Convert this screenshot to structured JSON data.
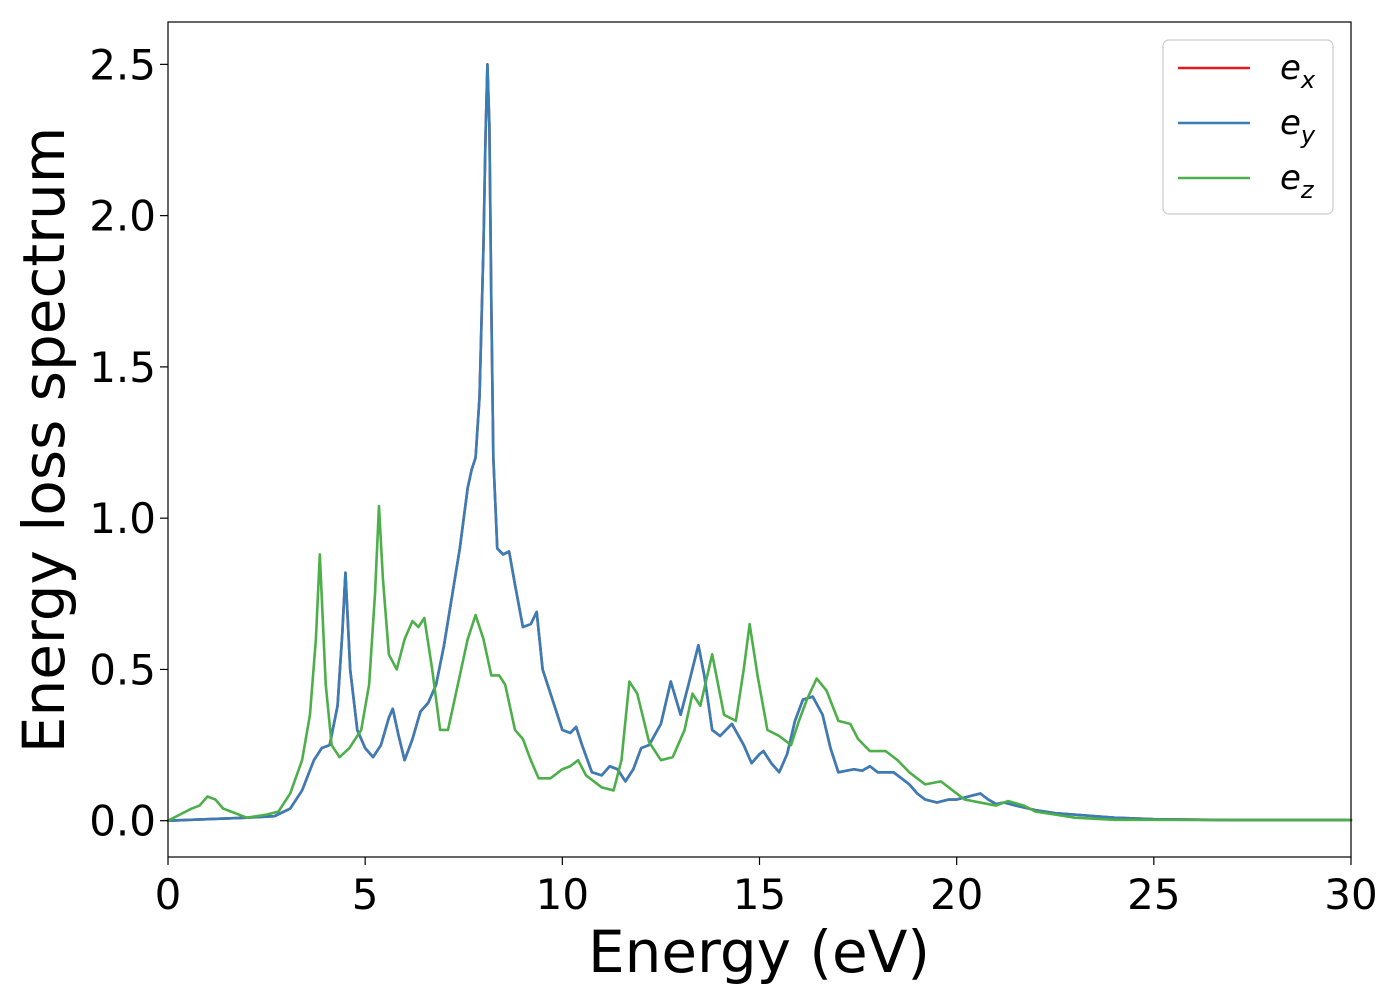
{
  "chart_data": {
    "type": "line",
    "title": "",
    "xlabel": "Energy (eV)",
    "ylabel": "Energy loss spectrum",
    "xlim": [
      0,
      30
    ],
    "ylim": [
      -0.12,
      2.64
    ],
    "x_ticks": [
      "0",
      "5",
      "10",
      "15",
      "20",
      "25",
      "30"
    ],
    "y_ticks": [
      "0.0",
      "0.5",
      "1.0",
      "1.5",
      "2.0",
      "2.5"
    ],
    "grid": false,
    "legend_position": "top-right",
    "colors": {
      "e_x": "#e41a1c",
      "e_y": "#377eb8",
      "e_z": "#4daf4a"
    },
    "series": [
      {
        "name": "e_x",
        "legend_base": "e",
        "legend_sub": "x",
        "x": [
          0,
          1,
          2,
          2.7,
          3.1,
          3.4,
          3.7,
          3.9,
          4.1,
          4.3,
          4.42,
          4.5,
          4.62,
          4.8,
          5.0,
          5.2,
          5.4,
          5.6,
          5.7,
          5.85,
          6.0,
          6.2,
          6.4,
          6.6,
          6.8,
          7.0,
          7.2,
          7.4,
          7.6,
          7.7,
          7.8,
          7.9,
          8.0,
          8.05,
          8.1,
          8.15,
          8.2,
          8.25,
          8.35,
          8.5,
          8.65,
          8.8,
          9.0,
          9.2,
          9.35,
          9.5,
          9.8,
          10.0,
          10.2,
          10.35,
          10.5,
          10.75,
          11.0,
          11.2,
          11.4,
          11.6,
          11.8,
          12.0,
          12.2,
          12.5,
          12.75,
          13.0,
          13.2,
          13.45,
          13.6,
          13.8,
          14.0,
          14.3,
          14.6,
          14.8,
          15.0,
          15.1,
          15.3,
          15.5,
          15.7,
          15.9,
          16.1,
          16.35,
          16.6,
          16.8,
          17.0,
          17.2,
          17.4,
          17.6,
          17.8,
          18.0,
          18.2,
          18.4,
          18.6,
          18.8,
          19.0,
          19.2,
          19.5,
          19.8,
          20.0,
          20.3,
          20.6,
          20.8,
          21.0,
          21.2,
          21.5,
          22.0,
          22.5,
          23,
          24,
          25,
          27,
          30
        ],
        "y": [
          0.0,
          0.005,
          0.01,
          0.015,
          0.04,
          0.1,
          0.2,
          0.24,
          0.25,
          0.38,
          0.62,
          0.82,
          0.5,
          0.3,
          0.24,
          0.21,
          0.25,
          0.34,
          0.37,
          0.28,
          0.2,
          0.27,
          0.36,
          0.39,
          0.45,
          0.58,
          0.74,
          0.9,
          1.1,
          1.16,
          1.2,
          1.4,
          1.9,
          2.25,
          2.5,
          2.3,
          1.7,
          1.2,
          0.9,
          0.88,
          0.89,
          0.78,
          0.64,
          0.65,
          0.69,
          0.5,
          0.38,
          0.3,
          0.29,
          0.31,
          0.25,
          0.16,
          0.15,
          0.18,
          0.17,
          0.13,
          0.17,
          0.24,
          0.25,
          0.32,
          0.46,
          0.35,
          0.45,
          0.58,
          0.48,
          0.3,
          0.28,
          0.32,
          0.25,
          0.19,
          0.22,
          0.23,
          0.19,
          0.16,
          0.22,
          0.33,
          0.4,
          0.41,
          0.35,
          0.24,
          0.16,
          0.165,
          0.17,
          0.165,
          0.18,
          0.16,
          0.16,
          0.16,
          0.14,
          0.12,
          0.09,
          0.07,
          0.06,
          0.07,
          0.07,
          0.08,
          0.09,
          0.07,
          0.055,
          0.06,
          0.05,
          0.035,
          0.025,
          0.02,
          0.01,
          0.005,
          0.002,
          0.002
        ]
      },
      {
        "name": "e_y",
        "legend_base": "e",
        "legend_sub": "y",
        "x": [
          0,
          1,
          2,
          2.7,
          3.1,
          3.4,
          3.7,
          3.9,
          4.1,
          4.3,
          4.42,
          4.5,
          4.62,
          4.8,
          5.0,
          5.2,
          5.4,
          5.6,
          5.7,
          5.85,
          6.0,
          6.2,
          6.4,
          6.6,
          6.8,
          7.0,
          7.2,
          7.4,
          7.6,
          7.7,
          7.8,
          7.9,
          8.0,
          8.05,
          8.1,
          8.15,
          8.2,
          8.25,
          8.35,
          8.5,
          8.65,
          8.8,
          9.0,
          9.2,
          9.35,
          9.5,
          9.8,
          10.0,
          10.2,
          10.35,
          10.5,
          10.75,
          11.0,
          11.2,
          11.4,
          11.6,
          11.8,
          12.0,
          12.2,
          12.5,
          12.75,
          13.0,
          13.2,
          13.45,
          13.6,
          13.8,
          14.0,
          14.3,
          14.6,
          14.8,
          15.0,
          15.1,
          15.3,
          15.5,
          15.7,
          15.9,
          16.1,
          16.35,
          16.6,
          16.8,
          17.0,
          17.2,
          17.4,
          17.6,
          17.8,
          18.0,
          18.2,
          18.4,
          18.6,
          18.8,
          19.0,
          19.2,
          19.5,
          19.8,
          20.0,
          20.3,
          20.6,
          20.8,
          21.0,
          21.2,
          21.5,
          22.0,
          22.5,
          23,
          24,
          25,
          27,
          30
        ],
        "y": [
          0.0,
          0.005,
          0.01,
          0.015,
          0.04,
          0.1,
          0.2,
          0.24,
          0.25,
          0.38,
          0.62,
          0.82,
          0.5,
          0.3,
          0.24,
          0.21,
          0.25,
          0.34,
          0.37,
          0.28,
          0.2,
          0.27,
          0.36,
          0.39,
          0.45,
          0.58,
          0.74,
          0.9,
          1.1,
          1.16,
          1.2,
          1.4,
          1.9,
          2.25,
          2.5,
          2.3,
          1.7,
          1.2,
          0.9,
          0.88,
          0.89,
          0.78,
          0.64,
          0.65,
          0.69,
          0.5,
          0.38,
          0.3,
          0.29,
          0.31,
          0.25,
          0.16,
          0.15,
          0.18,
          0.17,
          0.13,
          0.17,
          0.24,
          0.25,
          0.32,
          0.46,
          0.35,
          0.45,
          0.58,
          0.48,
          0.3,
          0.28,
          0.32,
          0.25,
          0.19,
          0.22,
          0.23,
          0.19,
          0.16,
          0.22,
          0.33,
          0.4,
          0.41,
          0.35,
          0.24,
          0.16,
          0.165,
          0.17,
          0.165,
          0.18,
          0.16,
          0.16,
          0.16,
          0.14,
          0.12,
          0.09,
          0.07,
          0.06,
          0.07,
          0.07,
          0.08,
          0.09,
          0.07,
          0.055,
          0.06,
          0.05,
          0.035,
          0.025,
          0.02,
          0.01,
          0.005,
          0.002,
          0.002
        ]
      },
      {
        "name": "e_z",
        "legend_base": "e",
        "legend_sub": "z",
        "x": [
          0,
          0.3,
          0.6,
          0.8,
          1.0,
          1.2,
          1.4,
          1.6,
          2.0,
          2.5,
          2.8,
          3.1,
          3.4,
          3.6,
          3.75,
          3.85,
          4.0,
          4.15,
          4.35,
          4.6,
          4.9,
          5.1,
          5.25,
          5.35,
          5.45,
          5.6,
          5.8,
          6.0,
          6.2,
          6.35,
          6.5,
          6.7,
          6.9,
          7.1,
          7.4,
          7.6,
          7.8,
          8.0,
          8.2,
          8.4,
          8.55,
          8.8,
          9.0,
          9.2,
          9.4,
          9.7,
          10.0,
          10.2,
          10.4,
          10.6,
          11.0,
          11.3,
          11.5,
          11.7,
          11.9,
          12.2,
          12.5,
          12.8,
          13.1,
          13.3,
          13.5,
          13.8,
          14.1,
          14.4,
          14.6,
          14.75,
          14.95,
          15.2,
          15.5,
          15.8,
          16.0,
          16.2,
          16.45,
          16.7,
          17.0,
          17.3,
          17.5,
          17.8,
          18.2,
          18.5,
          18.8,
          19.2,
          19.6,
          19.9,
          20.2,
          20.6,
          21.0,
          21.3,
          21.7,
          22.0,
          22.5,
          23,
          24,
          25,
          27,
          30
        ],
        "y": [
          0.0,
          0.02,
          0.04,
          0.05,
          0.08,
          0.07,
          0.04,
          0.03,
          0.01,
          0.02,
          0.03,
          0.09,
          0.2,
          0.35,
          0.6,
          0.88,
          0.45,
          0.25,
          0.21,
          0.24,
          0.3,
          0.45,
          0.75,
          1.04,
          0.8,
          0.55,
          0.5,
          0.6,
          0.66,
          0.64,
          0.67,
          0.5,
          0.3,
          0.3,
          0.48,
          0.6,
          0.68,
          0.6,
          0.48,
          0.48,
          0.45,
          0.3,
          0.27,
          0.2,
          0.14,
          0.14,
          0.17,
          0.18,
          0.2,
          0.15,
          0.11,
          0.1,
          0.2,
          0.46,
          0.42,
          0.26,
          0.2,
          0.21,
          0.3,
          0.42,
          0.38,
          0.55,
          0.35,
          0.33,
          0.5,
          0.65,
          0.48,
          0.3,
          0.28,
          0.25,
          0.33,
          0.4,
          0.47,
          0.43,
          0.33,
          0.32,
          0.27,
          0.23,
          0.23,
          0.2,
          0.16,
          0.12,
          0.13,
          0.1,
          0.07,
          0.06,
          0.05,
          0.065,
          0.05,
          0.03,
          0.02,
          0.01,
          0.003,
          0.003,
          0.002,
          0.002
        ]
      }
    ]
  }
}
